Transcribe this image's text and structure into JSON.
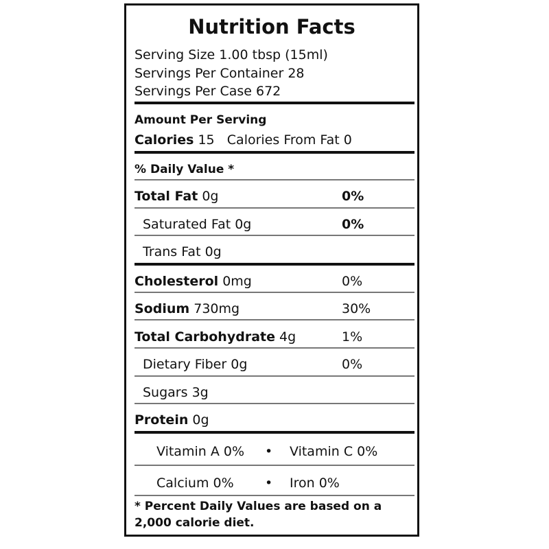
{
  "title": "Nutrition Facts",
  "serving": {
    "size_label": "Serving Size",
    "size_value": "1.00 tbsp (15ml)",
    "per_container_label": "Servings Per Container",
    "per_container_value": "28",
    "per_case_label": "Servings Per Case",
    "per_case_value": "672"
  },
  "amount_header": "Amount Per Serving",
  "calories": {
    "label": "Calories",
    "value": "15",
    "from_fat_label": "Calories From Fat",
    "from_fat_value": "0"
  },
  "daily_value_header": "% Daily Value *",
  "nutrients": {
    "total_fat": {
      "label": "Total Fat",
      "amount": "0g",
      "dv": "0%"
    },
    "saturated_fat": {
      "label": "Saturated Fat",
      "amount": "0g",
      "dv": "0%"
    },
    "trans_fat": {
      "label": "Trans Fat",
      "amount": "0g"
    },
    "cholesterol": {
      "label": "Cholesterol",
      "amount": "0mg",
      "dv": "0%"
    },
    "sodium": {
      "label": "Sodium",
      "amount": "730mg",
      "dv": "30%"
    },
    "total_carbohydrate": {
      "label": "Total Carbohydrate",
      "amount": "4g",
      "dv": "1%"
    },
    "dietary_fiber": {
      "label": "Dietary Fiber",
      "amount": "0g",
      "dv": "0%"
    },
    "sugars": {
      "label": "Sugars",
      "amount": "3g"
    },
    "protein": {
      "label": "Protein",
      "amount": "0g"
    }
  },
  "vitamins": {
    "vitamin_a": "Vitamin A 0%",
    "vitamin_c": "Vitamin C 0%",
    "calcium": "Calcium 0%",
    "iron": "Iron 0%",
    "separator": "•"
  },
  "footnote": "* Percent Daily Values are based on a 2,000 calorie diet."
}
